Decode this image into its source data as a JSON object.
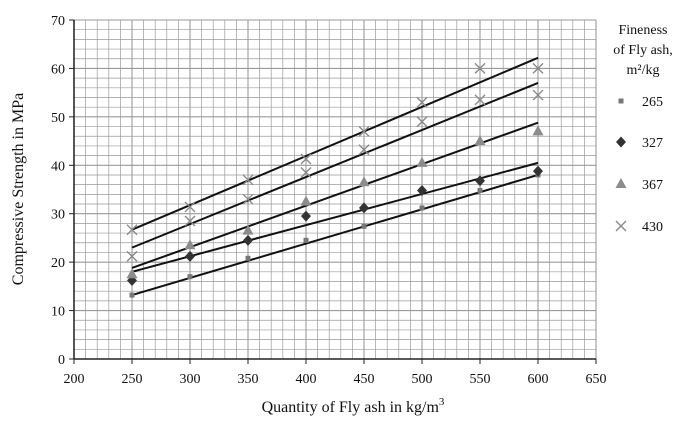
{
  "chart_data": {
    "type": "scatter",
    "xlabel": "Quantity of Fly ash in kg/m",
    "xlabel_sup": "3",
    "ylabel": "Compressive Strength in MPa",
    "xlim": [
      200,
      650
    ],
    "ylim": [
      0,
      70
    ],
    "x_major_ticks": [
      200,
      250,
      300,
      350,
      400,
      450,
      500,
      550,
      600,
      650
    ],
    "y_major_ticks": [
      0,
      10,
      20,
      30,
      40,
      50,
      60,
      70
    ],
    "x_minor_step": 10,
    "y_minor_step": 2,
    "grid": true,
    "legend": {
      "title_lines": [
        "Fineness",
        "of Fly ash,",
        "m²/kg"
      ],
      "position": "right"
    },
    "colors": {
      "grid": "#9a9a9a",
      "axis": "#222222",
      "trend": "#111111",
      "series_265": "#777777",
      "series_327": "#333333",
      "series_367": "#8c8c8c",
      "series_430": "#8a8a8a"
    },
    "series": [
      {
        "name": "265",
        "marker": "square",
        "x": [
          250,
          300,
          350,
          400,
          450,
          500,
          550,
          600
        ],
        "y": [
          13.2,
          17,
          20.8,
          24.5,
          27.4,
          31.2,
          34.8,
          38
        ],
        "trend": [
          [
            250,
            13.2
          ],
          [
            600,
            38
          ]
        ]
      },
      {
        "name": "327",
        "marker": "diamond",
        "x": [
          250,
          300,
          350,
          400,
          450,
          500,
          550,
          600
        ],
        "y": [
          16.2,
          21.2,
          24.5,
          29.5,
          31.2,
          34.8,
          36.8,
          38.8
        ],
        "trend": [
          [
            250,
            18
          ],
          [
            600,
            40.5
          ]
        ]
      },
      {
        "name": "367",
        "marker": "triangle",
        "x": [
          250,
          300,
          350,
          400,
          450,
          500,
          550,
          600
        ],
        "y": [
          17.5,
          23.5,
          26.5,
          32.5,
          36.5,
          40.5,
          45,
          47
        ],
        "trend": [
          [
            250,
            18.8
          ],
          [
            600,
            48.8
          ]
        ]
      },
      {
        "name": "430",
        "marker": "x",
        "x": [
          250,
          300,
          350,
          400,
          450,
          500,
          550,
          600
        ],
        "y": [
          21.2,
          28.5,
          33,
          38.5,
          43.2,
          49,
          53.5,
          54.5
        ],
        "y_upper": [
          26.7,
          31.4,
          37,
          41.3,
          47,
          53,
          60,
          60
        ],
        "trend": [
          [
            250,
            23
          ],
          [
            600,
            57
          ]
        ],
        "trend_upper": [
          [
            250,
            26.7
          ],
          [
            600,
            62.2
          ]
        ]
      }
    ]
  }
}
